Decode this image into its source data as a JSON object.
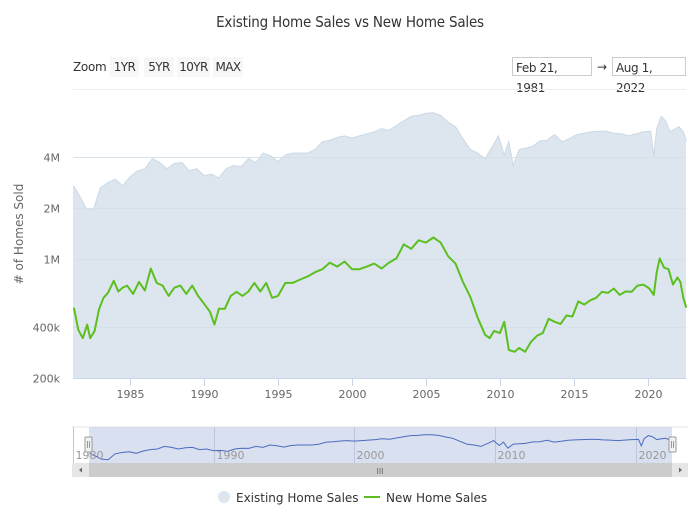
{
  "chart_data": {
    "type": "area+line",
    "title": "Existing Home Sales vs New Home Sales",
    "xlabel": "",
    "ylabel": "# of Homes Sold",
    "yscale": "log",
    "ylim": [
      200000,
      10000000
    ],
    "xlim": [
      1981.14,
      2022.58
    ],
    "grid": true,
    "legend_position": "bottom-center",
    "y_ticks": [
      {
        "value": 200000,
        "label": "200k"
      },
      {
        "value": 400000,
        "label": "400k"
      },
      {
        "value": 1000000,
        "label": "1M"
      },
      {
        "value": 2000000,
        "label": "2M"
      },
      {
        "value": 4000000,
        "label": "4M"
      }
    ],
    "x_ticks": [
      {
        "value": 1985,
        "label": "1985"
      },
      {
        "value": 1990,
        "label": "1990"
      },
      {
        "value": 1995,
        "label": "1995"
      },
      {
        "value": 2000,
        "label": "2000"
      },
      {
        "value": 2005,
        "label": "2005"
      },
      {
        "value": 2010,
        "label": "2010"
      },
      {
        "value": 2015,
        "label": "2015"
      },
      {
        "value": 2020,
        "label": "2020"
      }
    ],
    "series": [
      {
        "name": "Existing Home Sales",
        "kind": "area",
        "color": "#dde6ee",
        "line_color": "#cbd9e5",
        "x": [
          1981.2,
          1981.6,
          1982.0,
          1982.5,
          1983.0,
          1983.5,
          1984.0,
          1984.5,
          1985.0,
          1985.5,
          1986.0,
          1986.5,
          1987.0,
          1987.5,
          1988.0,
          1988.5,
          1989.0,
          1989.5,
          1990.0,
          1990.5,
          1991.0,
          1991.5,
          1992.0,
          1992.5,
          1993.0,
          1993.5,
          1994.0,
          1994.5,
          1995.0,
          1995.5,
          1996.0,
          1996.5,
          1997.0,
          1997.5,
          1998.0,
          1998.5,
          1999.0,
          1999.5,
          2000.0,
          2000.5,
          2001.0,
          2001.5,
          2002.0,
          2002.5,
          2003.0,
          2003.5,
          2004.0,
          2004.5,
          2005.0,
          2005.5,
          2006.0,
          2006.5,
          2007.0,
          2007.5,
          2008.0,
          2008.5,
          2009.0,
          2009.5,
          2009.9,
          2010.3,
          2010.6,
          2010.9,
          2011.3,
          2011.8,
          2012.2,
          2012.7,
          2013.2,
          2013.7,
          2014.2,
          2014.7,
          2015.2,
          2015.7,
          2016.2,
          2016.7,
          2017.2,
          2017.7,
          2018.2,
          2018.7,
          2019.2,
          2019.7,
          2020.2,
          2020.4,
          2020.6,
          2020.9,
          2021.2,
          2021.5,
          2021.8,
          2022.1,
          2022.4,
          2022.6
        ],
        "values": [
          2680000,
          2340000,
          2000000,
          1930000,
          2630000,
          2820000,
          2950000,
          2700000,
          3050000,
          3300000,
          3400000,
          3900000,
          3700000,
          3400000,
          3650000,
          3700000,
          3300000,
          3400000,
          3100000,
          3150000,
          3000000,
          3400000,
          3550000,
          3500000,
          3900000,
          3700000,
          4200000,
          4050000,
          3750000,
          4100000,
          4200000,
          4200000,
          4200000,
          4400000,
          4900000,
          5000000,
          5200000,
          5300000,
          5150000,
          5300000,
          5450000,
          5600000,
          5850000,
          5700000,
          6100000,
          6500000,
          6900000,
          7000000,
          7200000,
          7250000,
          7000000,
          6400000,
          6000000,
          5100000,
          4400000,
          4200000,
          3900000,
          4600000,
          5300000,
          4100000,
          4900000,
          3550000,
          4400000,
          4500000,
          4600000,
          4950000,
          5000000,
          5400000,
          4900000,
          5100000,
          5400000,
          5500000,
          5600000,
          5650000,
          5650000,
          5500000,
          5450000,
          5300000,
          5450000,
          5600000,
          5650000,
          4000000,
          5850000,
          6900000,
          6500000,
          5600000,
          5800000,
          6000000,
          5600000,
          4950000
        ]
      },
      {
        "name": "New Home Sales",
        "kind": "line",
        "color": "#5cbf20",
        "x": [
          1981.2,
          1981.5,
          1981.8,
          1982.1,
          1982.3,
          1982.6,
          1982.9,
          1983.2,
          1983.5,
          1983.9,
          1984.2,
          1984.5,
          1984.8,
          1985.2,
          1985.6,
          1986.0,
          1986.4,
          1986.8,
          1987.2,
          1987.6,
          1988.0,
          1988.4,
          1988.8,
          1989.2,
          1989.6,
          1990.0,
          1990.4,
          1990.7,
          1991.0,
          1991.4,
          1991.8,
          1992.2,
          1992.6,
          1993.0,
          1993.4,
          1993.8,
          1994.2,
          1994.6,
          1995.0,
          1995.5,
          1996.0,
          1996.5,
          1997.0,
          1997.5,
          1998.0,
          1998.5,
          1999.0,
          1999.5,
          2000.0,
          2000.5,
          2001.0,
          2001.5,
          2002.0,
          2002.5,
          2003.0,
          2003.5,
          2004.0,
          2004.5,
          2005.0,
          2005.5,
          2006.0,
          2006.5,
          2007.0,
          2007.5,
          2008.0,
          2008.5,
          2009.0,
          2009.3,
          2009.6,
          2010.0,
          2010.3,
          2010.6,
          2011.0,
          2011.3,
          2011.7,
          2012.1,
          2012.5,
          2012.9,
          2013.3,
          2013.7,
          2014.1,
          2014.5,
          2014.9,
          2015.3,
          2015.7,
          2016.1,
          2016.5,
          2016.9,
          2017.3,
          2017.7,
          2018.1,
          2018.5,
          2018.9,
          2019.3,
          2019.7,
          2020.1,
          2020.4,
          2020.6,
          2020.8,
          2021.1,
          2021.4,
          2021.7,
          2022.0,
          2022.2,
          2022.4,
          2022.6
        ],
        "values": [
          518000,
          384000,
          343000,
          412000,
          343000,
          378000,
          506000,
          592000,
          633000,
          746000,
          645000,
          680000,
          699000,
          624000,
          734000,
          654000,
          881000,
          725000,
          699000,
          608000,
          680000,
          699000,
          624000,
          699000,
          608000,
          546000,
          490000,
          412000,
          510000,
          510000,
          608000,
          642000,
          608000,
          645000,
          725000,
          645000,
          725000,
          592000,
          608000,
          725000,
          725000,
          759000,
          790000,
          838000,
          872000,
          954000,
          904000,
          967000,
          872000,
          872000,
          904000,
          941000,
          881000,
          954000,
          1010000,
          1220000,
          1150000,
          1290000,
          1250000,
          1340000,
          1250000,
          1040000,
          941000,
          734000,
          600000,
          452000,
          359000,
          343000,
          378000,
          368000,
          428000,
          292000,
          285000,
          300000,
          285000,
          326000,
          354000,
          368000,
          446000,
          428000,
          416000,
          466000,
          460000,
          564000,
          540000,
          572000,
          592000,
          642000,
          633000,
          672000,
          616000,
          645000,
          642000,
          699000,
          708000,
          672000,
          616000,
          838000,
          1010000,
          890000,
          872000,
          708000,
          780000,
          734000,
          592000,
          518000
        ]
      }
    ],
    "navigator": {
      "x_ticks": [
        {
          "value": 1980,
          "label": "1980"
        },
        {
          "value": 1990,
          "label": "1990"
        },
        {
          "value": 2000,
          "label": "2000"
        },
        {
          "value": 2010,
          "label": "2010"
        },
        {
          "value": 2020,
          "label": "2020"
        }
      ],
      "line_color": "#4a6bbf",
      "mask_color": "#ccd6eb",
      "scrollbar_grip": "III"
    }
  },
  "range_selector": {
    "zoom_label": "Zoom",
    "buttons": [
      "1YR",
      "5YR",
      "10YR",
      "MAX"
    ],
    "from_date": "Feb 21, 1981",
    "arrow": "→",
    "to_date": "Aug 1, 2022"
  },
  "legend": {
    "items": [
      {
        "label": "Existing Home Sales",
        "icon": "circle-marker",
        "color": "#dde6ee"
      },
      {
        "label": "New Home Sales",
        "icon": "line-marker",
        "color": "#5cbf20"
      }
    ]
  }
}
